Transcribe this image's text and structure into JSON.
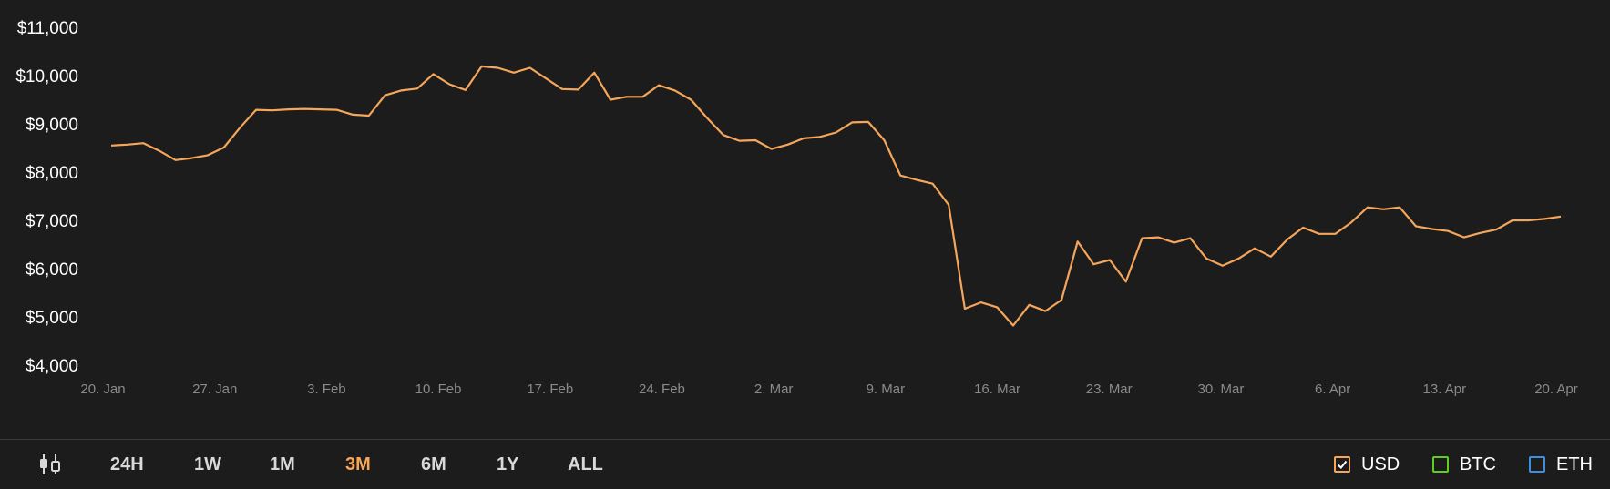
{
  "colors": {
    "background": "#1c1c1c",
    "line": "#f5a65b",
    "active": "#f5a65b",
    "usd": "#f5a65b",
    "btc": "#5fce1e",
    "eth": "#3d8fe0"
  },
  "chart_data": {
    "type": "line",
    "title": "",
    "xlabel": "",
    "ylabel": "",
    "grid": false,
    "ylim": [
      4000,
      11000
    ],
    "y_ticks": [
      "$11,000",
      "$10,000",
      "$9,000",
      "$8,000",
      "$7,000",
      "$6,000",
      "$5,000",
      "$4,000"
    ],
    "y_tick_values": [
      11000,
      10000,
      9000,
      8000,
      7000,
      6000,
      5000,
      4000
    ],
    "x_ticks": [
      "20. Jan",
      "27. Jan",
      "3. Feb",
      "10. Feb",
      "17. Feb",
      "24. Feb",
      "2. Mar",
      "9. Mar",
      "16. Mar",
      "23. Mar",
      "30. Mar",
      "6. Apr",
      "13. Apr",
      "20. Apr"
    ],
    "x_start": "20. Jan",
    "x_end": "20. Apr",
    "series": [
      {
        "values": [
          8550,
          8570,
          8600,
          8440,
          8250,
          8290,
          8350,
          8510,
          8920,
          9290,
          9280,
          9300,
          9310,
          9300,
          9290,
          9190,
          9170,
          9590,
          9690,
          9730,
          10030,
          9820,
          9700,
          10190,
          10160,
          10060,
          10160,
          9940,
          9720,
          9710,
          10060,
          9500,
          9560,
          9560,
          9800,
          9690,
          9500,
          9120,
          8770,
          8650,
          8660,
          8480,
          8570,
          8700,
          8730,
          8820,
          9030,
          9040,
          8660,
          7930,
          7840,
          7760,
          7320,
          5170,
          5300,
          5200,
          4820,
          5250,
          5120,
          5350,
          6560,
          6090,
          6180,
          5730,
          6630,
          6650,
          6540,
          6630,
          6210,
          6060,
          6210,
          6420,
          6250,
          6600,
          6850,
          6720,
          6720,
          6960,
          7270,
          7230,
          7270,
          6880,
          6820,
          6780,
          6650,
          6740,
          6810,
          7000,
          7000,
          7030,
          7080
        ]
      }
    ]
  },
  "toolbar": {
    "candles_icon": "candlestick-icon",
    "ranges": [
      "24H",
      "1W",
      "1M",
      "3M",
      "6M",
      "1Y",
      "ALL"
    ],
    "active_range": "3M",
    "currencies": [
      {
        "label": "USD",
        "checked": true
      },
      {
        "label": "BTC",
        "checked": false
      },
      {
        "label": "ETH",
        "checked": false
      }
    ]
  }
}
